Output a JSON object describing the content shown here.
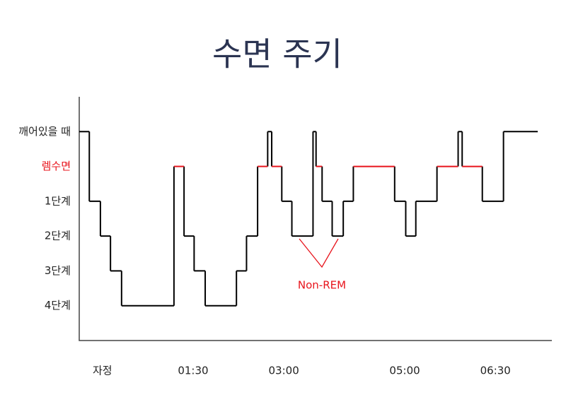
{
  "chart_data": {
    "type": "step",
    "title": "수면 주기",
    "x": [
      -23,
      -13,
      -2,
      8,
      19,
      71,
      81,
      91,
      102,
      133,
      143,
      154,
      164,
      168,
      178,
      188,
      209,
      212,
      218,
      228,
      239,
      249,
      290,
      301,
      311,
      332,
      353,
      357,
      377,
      398
    ],
    "x_end": 432,
    "values": [
      5,
      3,
      2,
      1,
      0,
      4,
      2,
      1,
      0,
      1,
      2,
      4,
      5,
      4,
      3,
      2,
      5,
      4,
      3,
      2,
      3,
      4,
      3,
      2,
      3,
      4,
      5,
      4,
      3,
      5
    ],
    "color": "#000000",
    "highlight_level": 4,
    "highlight_color": "#e8141c",
    "xlim": [
      -23,
      446
    ],
    "xticks": [
      {
        "value": 0,
        "label": "자정"
      },
      {
        "value": 90,
        "label": "01:30"
      },
      {
        "value": 180,
        "label": "03:00"
      },
      {
        "value": 300,
        "label": "05:00"
      },
      {
        "value": 390,
        "label": "06:30"
      }
    ],
    "ylim": [
      -1,
      6
    ],
    "yticks": [
      {
        "value": 5,
        "label": "깨어있을 때"
      },
      {
        "value": 4,
        "label": "렘수면"
      },
      {
        "value": 3,
        "label": "1단계"
      },
      {
        "value": 2,
        "label": "2단계"
      },
      {
        "value": 1,
        "label": "3단계"
      },
      {
        "value": 0,
        "label": "4단계"
      }
    ],
    "annotation": "Non-REM"
  }
}
